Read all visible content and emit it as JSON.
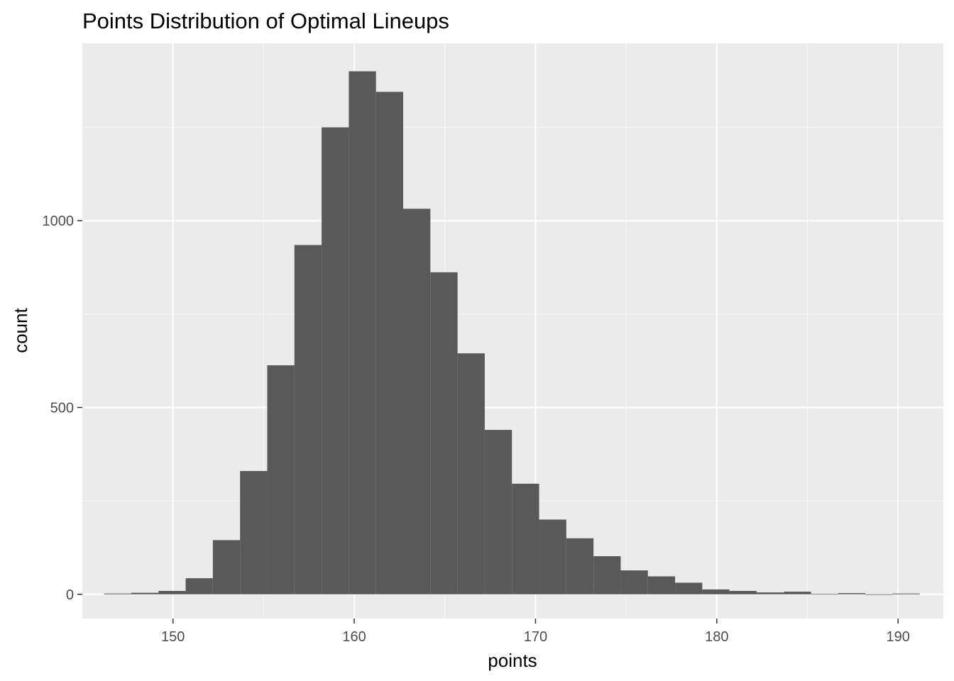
{
  "chart_data": {
    "type": "bar",
    "title": "Points Distribution of Optimal Lineups",
    "xlabel": "points",
    "ylabel": "count",
    "xlim": [
      145,
      192.5
    ],
    "ylim": [
      -65,
      1475
    ],
    "x_ticks": [
      150,
      160,
      170,
      180,
      190
    ],
    "x_tick_labels": [
      "150",
      "160",
      "170",
      "180",
      "190"
    ],
    "y_ticks": [
      0,
      500,
      1000
    ],
    "y_tick_labels": [
      "0",
      "500",
      "1000"
    ],
    "grid": true,
    "bin_width": 1.5,
    "bins": [
      {
        "x_start": 146.2,
        "x_end": 147.7,
        "count": 2
      },
      {
        "x_start": 147.7,
        "x_end": 149.2,
        "count": 4
      },
      {
        "x_start": 149.2,
        "x_end": 150.7,
        "count": 9
      },
      {
        "x_start": 150.7,
        "x_end": 152.2,
        "count": 43
      },
      {
        "x_start": 152.2,
        "x_end": 153.7,
        "count": 145
      },
      {
        "x_start": 153.7,
        "x_end": 155.2,
        "count": 330
      },
      {
        "x_start": 155.2,
        "x_end": 156.7,
        "count": 613
      },
      {
        "x_start": 156.7,
        "x_end": 158.2,
        "count": 935
      },
      {
        "x_start": 158.2,
        "x_end": 159.7,
        "count": 1250
      },
      {
        "x_start": 159.7,
        "x_end": 161.2,
        "count": 1400
      },
      {
        "x_start": 161.2,
        "x_end": 162.7,
        "count": 1345
      },
      {
        "x_start": 162.7,
        "x_end": 164.2,
        "count": 1032
      },
      {
        "x_start": 164.2,
        "x_end": 165.7,
        "count": 862
      },
      {
        "x_start": 165.7,
        "x_end": 167.2,
        "count": 645
      },
      {
        "x_start": 167.2,
        "x_end": 168.7,
        "count": 440
      },
      {
        "x_start": 168.7,
        "x_end": 170.2,
        "count": 296
      },
      {
        "x_start": 170.2,
        "x_end": 171.7,
        "count": 200
      },
      {
        "x_start": 171.7,
        "x_end": 173.2,
        "count": 150
      },
      {
        "x_start": 173.2,
        "x_end": 174.7,
        "count": 102
      },
      {
        "x_start": 174.7,
        "x_end": 176.2,
        "count": 64
      },
      {
        "x_start": 176.2,
        "x_end": 177.7,
        "count": 48
      },
      {
        "x_start": 177.7,
        "x_end": 179.2,
        "count": 31
      },
      {
        "x_start": 179.2,
        "x_end": 180.7,
        "count": 13
      },
      {
        "x_start": 180.7,
        "x_end": 182.2,
        "count": 9
      },
      {
        "x_start": 182.2,
        "x_end": 183.7,
        "count": 5
      },
      {
        "x_start": 183.7,
        "x_end": 185.2,
        "count": 7
      },
      {
        "x_start": 185.2,
        "x_end": 186.7,
        "count": 1
      },
      {
        "x_start": 186.7,
        "x_end": 188.2,
        "count": 3
      },
      {
        "x_start": 188.2,
        "x_end": 189.7,
        "count": 0
      },
      {
        "x_start": 189.7,
        "x_end": 191.2,
        "count": 2
      }
    ],
    "colors": {
      "panel_background": "#ebebeb",
      "grid_major": "#ffffff",
      "grid_minor": "#f5f5f5",
      "bar_fill": "#595959",
      "tick_text": "#4d4d4d",
      "tick_mark": "#333333"
    }
  }
}
